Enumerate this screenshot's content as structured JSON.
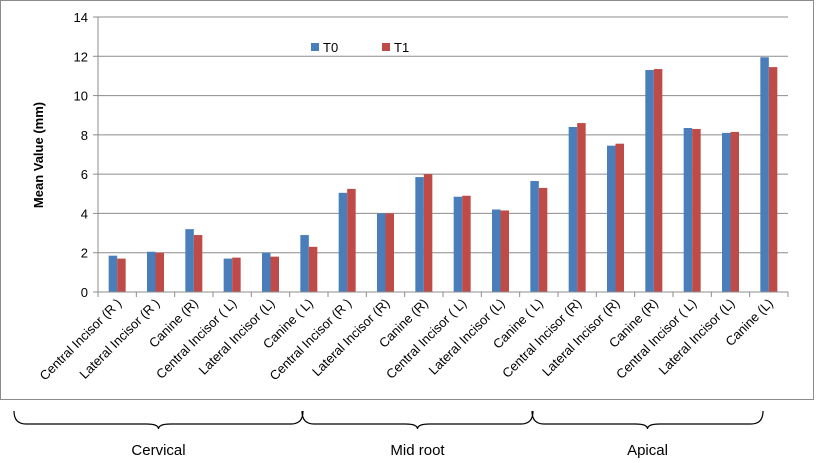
{
  "chart_data": {
    "type": "bar",
    "ylabel": "Mean Value (mm)",
    "xlabel": "",
    "ylim": [
      0,
      14
    ],
    "yticks": [
      0,
      2,
      4,
      6,
      8,
      10,
      12,
      14
    ],
    "grid": "horizontal",
    "legend_position": "top-center",
    "categories": [
      "Central Incisor (R )",
      "Lateral Incisor (R )",
      "Canine (R)",
      "Central Incisor ( L)",
      "Lateral Incisor (L)",
      "Canine ( L)",
      "Central Incisor (R )",
      "Lateral Incisor (R)",
      "Canine (R)",
      "Central Incisor ( L)",
      "Lateral Incisor (L)",
      "Canine ( L)",
      "Central Incisor (R)",
      "Lateral Incisor (R)",
      "Canine (R)",
      "Central Incisor ( L)",
      "Lateral Incisor (L)",
      "Canine (L)"
    ],
    "series": [
      {
        "name": "T0",
        "color": "#4a7ebb",
        "values": [
          1.85,
          2.05,
          3.2,
          1.7,
          2.0,
          2.9,
          5.05,
          4.0,
          5.85,
          4.85,
          4.2,
          5.65,
          8.4,
          7.45,
          11.3,
          8.35,
          8.1,
          11.95
        ]
      },
      {
        "name": "T1",
        "color": "#be4b48",
        "values": [
          1.7,
          2.0,
          2.9,
          1.75,
          1.8,
          2.3,
          5.25,
          4.0,
          6.0,
          4.9,
          4.15,
          5.3,
          8.6,
          7.55,
          11.35,
          8.3,
          8.15,
          11.45
        ]
      }
    ],
    "groups": [
      {
        "label": "Cervical",
        "start": 0,
        "end": 5
      },
      {
        "label": "Mid root",
        "start": 6,
        "end": 11
      },
      {
        "label": "Apical",
        "start": 12,
        "end": 17
      }
    ]
  }
}
